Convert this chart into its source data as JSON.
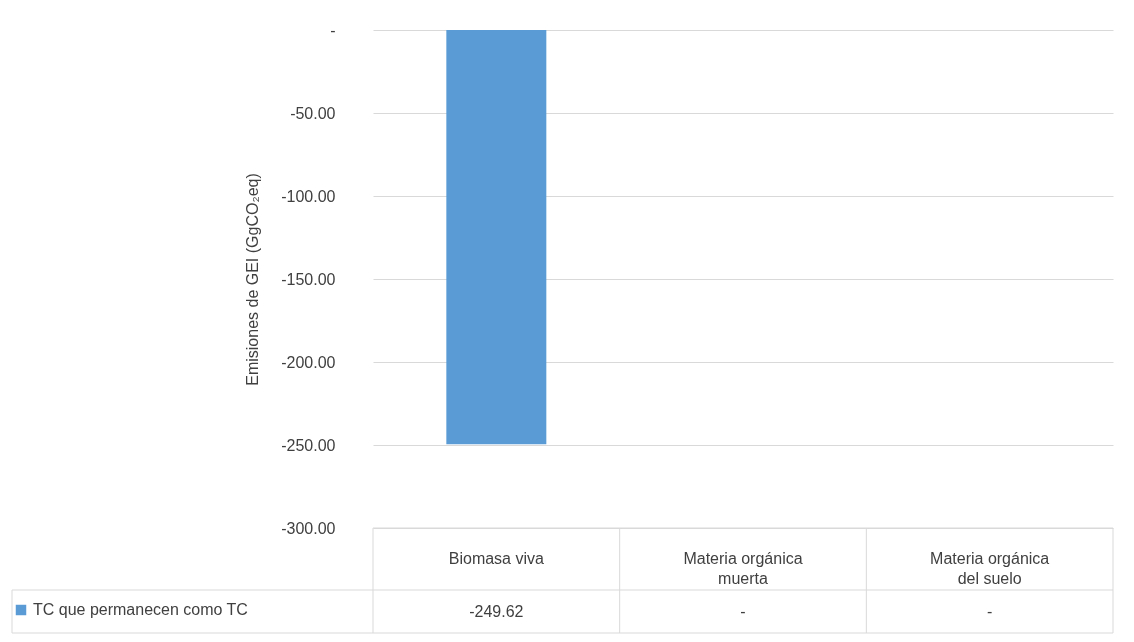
{
  "chart_data": {
    "type": "bar",
    "ylabel": "Emisiones de GEI (GgCO₂eq)",
    "categories": [
      "Biomasa viva",
      "Materia orgánica muerta",
      "Materia orgánica del suelo"
    ],
    "series": [
      {
        "name": "TC que permanecen como TC",
        "color": "#5b9bd5",
        "values": [
          -249.62,
          0,
          0
        ],
        "value_labels": [
          "-249.62",
          "-",
          "-"
        ]
      }
    ],
    "ylim": [
      -300,
      0
    ],
    "yticks": [
      {
        "value": 0,
        "label": "-"
      },
      {
        "value": -50,
        "label": "-50.00"
      },
      {
        "value": -100,
        "label": "-100.00"
      },
      {
        "value": -150,
        "label": "-150.00"
      },
      {
        "value": -200,
        "label": "-200.00"
      },
      {
        "value": -250,
        "label": "-250.00"
      },
      {
        "value": -300,
        "label": "-300.00"
      }
    ],
    "grid": "y",
    "legend": "bottom left"
  }
}
